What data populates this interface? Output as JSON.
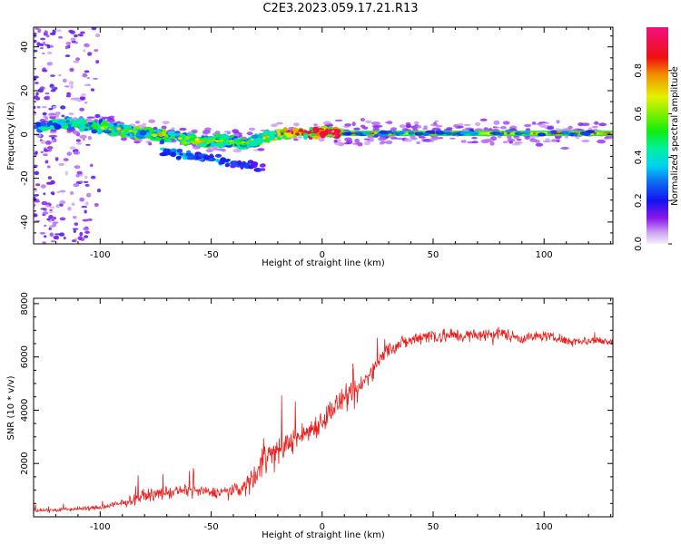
{
  "title": "C2E3.2023.059.17.21.R13",
  "chart_data": [
    {
      "type": "heatmap",
      "xlabel": "Height of straight line (km)",
      "ylabel": "Frequency (Hz)",
      "xlim": [
        -130,
        131
      ],
      "ylim": [
        -50,
        49
      ],
      "xticks": [
        -100,
        -50,
        0,
        50,
        100
      ],
      "yticks": [
        -40,
        -20,
        0,
        20,
        40
      ],
      "colorbar": {
        "label": "Normalized spectral amplitude",
        "range": [
          0,
          1
        ],
        "ticks": [
          0.0,
          0.2,
          0.4,
          0.6,
          0.8
        ],
        "tick_labels": [
          "0.0",
          "0.2",
          "0.4",
          "0.6",
          "0.8"
        ]
      },
      "tone_band": {
        "x": [
          -20,
          131
        ],
        "y_center": 0.5,
        "amplitude": 0.9
      },
      "doppler_trace": [
        {
          "x": -125,
          "freq": 4,
          "amp": 0.35
        },
        {
          "x": -115,
          "freq": 5,
          "amp": 0.4
        },
        {
          "x": -105,
          "freq": 4,
          "amp": 0.4
        },
        {
          "x": -95,
          "freq": 3,
          "amp": 0.4
        },
        {
          "x": -85,
          "freq": 1,
          "amp": 0.45
        },
        {
          "x": -75,
          "freq": 0,
          "amp": 0.45
        },
        {
          "x": -65,
          "freq": -1,
          "amp": 0.45
        },
        {
          "x": -55,
          "freq": -3,
          "amp": 0.45
        },
        {
          "x": -45,
          "freq": -3,
          "amp": 0.4
        },
        {
          "x": -35,
          "freq": -4,
          "amp": 0.4
        },
        {
          "x": -27,
          "freq": -2,
          "amp": 0.45
        },
        {
          "x": -20,
          "freq": 0,
          "amp": 0.6
        },
        {
          "x": -10,
          "freq": 1,
          "amp": 0.7
        },
        {
          "x": 0,
          "freq": 1,
          "amp": 0.8
        },
        {
          "x": 8,
          "freq": 1,
          "amp": 0.85
        }
      ],
      "low_branch": [
        {
          "x": -70,
          "freq": -8,
          "amp": 0.3
        },
        {
          "x": -60,
          "freq": -10,
          "amp": 0.3
        },
        {
          "x": -50,
          "freq": -11,
          "amp": 0.3
        },
        {
          "x": -40,
          "freq": -13,
          "amp": 0.25
        },
        {
          "x": -30,
          "freq": -15,
          "amp": 0.2
        }
      ]
    },
    {
      "type": "line",
      "xlabel": "Height of straight line (km)",
      "ylabel": "SNR (10 * v/v)",
      "xlim": [
        -130,
        131
      ],
      "ylim": [
        0,
        8200
      ],
      "xticks": [
        -100,
        -50,
        0,
        50,
        100
      ],
      "yticks": [
        2000,
        4000,
        6000,
        8000
      ],
      "series": [
        {
          "color": "#e8201e",
          "x": [
            -130,
            -120,
            -110,
            -100,
            -90,
            -80,
            -70,
            -60,
            -50,
            -40,
            -35,
            -30,
            -25,
            -20,
            -15,
            -10,
            -5,
            0,
            5,
            10,
            15,
            20,
            25,
            30,
            35,
            40,
            45,
            50,
            60,
            70,
            80,
            90,
            100,
            110,
            120,
            131
          ],
          "values": [
            250,
            250,
            300,
            350,
            500,
            800,
            900,
            1000,
            900,
            1000,
            1100,
            1600,
            2400,
            2400,
            2800,
            3000,
            3300,
            3600,
            4100,
            4400,
            4600,
            5200,
            5800,
            6300,
            6500,
            6600,
            6800,
            6800,
            6800,
            6800,
            6900,
            6700,
            6800,
            6600,
            6600,
            6600
          ],
          "noise": [
            200,
            200,
            200,
            250,
            450,
            550,
            650,
            600,
            550,
            600,
            900,
            1600,
            1600,
            1200,
            1200,
            1200,
            1200,
            1300,
            1300,
            1300,
            1300,
            1000,
            900,
            800,
            700,
            700,
            700,
            900,
            750,
            650,
            650,
            550,
            500,
            450,
            450,
            450
          ]
        }
      ]
    }
  ]
}
